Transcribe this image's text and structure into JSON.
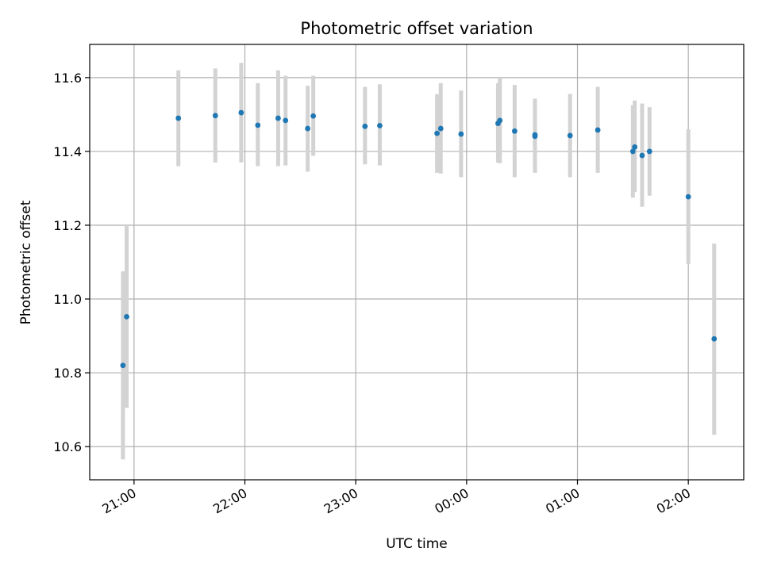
{
  "chart_data": {
    "type": "scatter",
    "title": "Photometric offset variation",
    "xlabel": "UTC time",
    "ylabel": "Photometric offset",
    "grid": true,
    "xlim": [
      "20:36",
      "02:30"
    ],
    "ylim": [
      10.51,
      11.69
    ],
    "x_ticks": [
      "21:00",
      "22:00",
      "23:00",
      "00:00",
      "01:00",
      "02:00"
    ],
    "y_ticks": [
      "10.6",
      "10.8",
      "11.0",
      "11.2",
      "11.4",
      "11.6"
    ],
    "colors": {
      "points": "#1f77b4",
      "error_bars": "#d3d3d3",
      "grid": "#b0b0b0"
    },
    "series": [
      {
        "points": [
          {
            "x": "20:54",
            "y": 10.82,
            "lo": 10.565,
            "hi": 11.075
          },
          {
            "x": "20:56",
            "y": 10.952,
            "lo": 10.705,
            "hi": 11.2
          },
          {
            "x": "21:24",
            "y": 11.49,
            "lo": 11.36,
            "hi": 11.62
          },
          {
            "x": "21:44",
            "y": 11.497,
            "lo": 11.37,
            "hi": 11.625
          },
          {
            "x": "21:58",
            "y": 11.505,
            "lo": 11.37,
            "hi": 11.64
          },
          {
            "x": "22:07",
            "y": 11.471,
            "lo": 11.36,
            "hi": 11.585
          },
          {
            "x": "22:18",
            "y": 11.49,
            "lo": 11.36,
            "hi": 11.62
          },
          {
            "x": "22:22",
            "y": 11.484,
            "lo": 11.362,
            "hi": 11.605
          },
          {
            "x": "22:34",
            "y": 11.462,
            "lo": 11.345,
            "hi": 11.578
          },
          {
            "x": "22:37",
            "y": 11.496,
            "lo": 11.388,
            "hi": 11.605
          },
          {
            "x": "23:05",
            "y": 11.468,
            "lo": 11.365,
            "hi": 11.575
          },
          {
            "x": "23:13",
            "y": 11.47,
            "lo": 11.362,
            "hi": 11.582
          },
          {
            "x": "23:44",
            "y": 11.449,
            "lo": 11.342,
            "hi": 11.555
          },
          {
            "x": "23:46",
            "y": 11.462,
            "lo": 11.34,
            "hi": 11.585
          },
          {
            "x": "23:57",
            "y": 11.447,
            "lo": 11.33,
            "hi": 11.565
          },
          {
            "x": "00:17",
            "y": 11.476,
            "lo": 11.37,
            "hi": 11.585
          },
          {
            "x": "00:18",
            "y": 11.484,
            "lo": 11.368,
            "hi": 11.6
          },
          {
            "x": "00:26",
            "y": 11.455,
            "lo": 11.33,
            "hi": 11.58
          },
          {
            "x": "00:37",
            "y": 11.441,
            "lo": 11.342,
            "hi": 11.543
          },
          {
            "x": "00:37",
            "y": 11.445,
            "lo": 11.345,
            "hi": 11.54
          },
          {
            "x": "00:56",
            "y": 11.443,
            "lo": 11.33,
            "hi": 11.556
          },
          {
            "x": "01:11",
            "y": 11.458,
            "lo": 11.342,
            "hi": 11.575
          },
          {
            "x": "01:30",
            "y": 11.4,
            "lo": 11.275,
            "hi": 11.525
          },
          {
            "x": "01:31",
            "y": 11.412,
            "lo": 11.29,
            "hi": 11.538
          },
          {
            "x": "01:35",
            "y": 11.389,
            "lo": 11.25,
            "hi": 11.53
          },
          {
            "x": "01:39",
            "y": 11.4,
            "lo": 11.28,
            "hi": 11.52
          },
          {
            "x": "02:00",
            "y": 11.277,
            "lo": 11.095,
            "hi": 11.46
          },
          {
            "x": "02:14",
            "y": 10.892,
            "lo": 10.632,
            "hi": 11.15
          }
        ]
      }
    ]
  }
}
